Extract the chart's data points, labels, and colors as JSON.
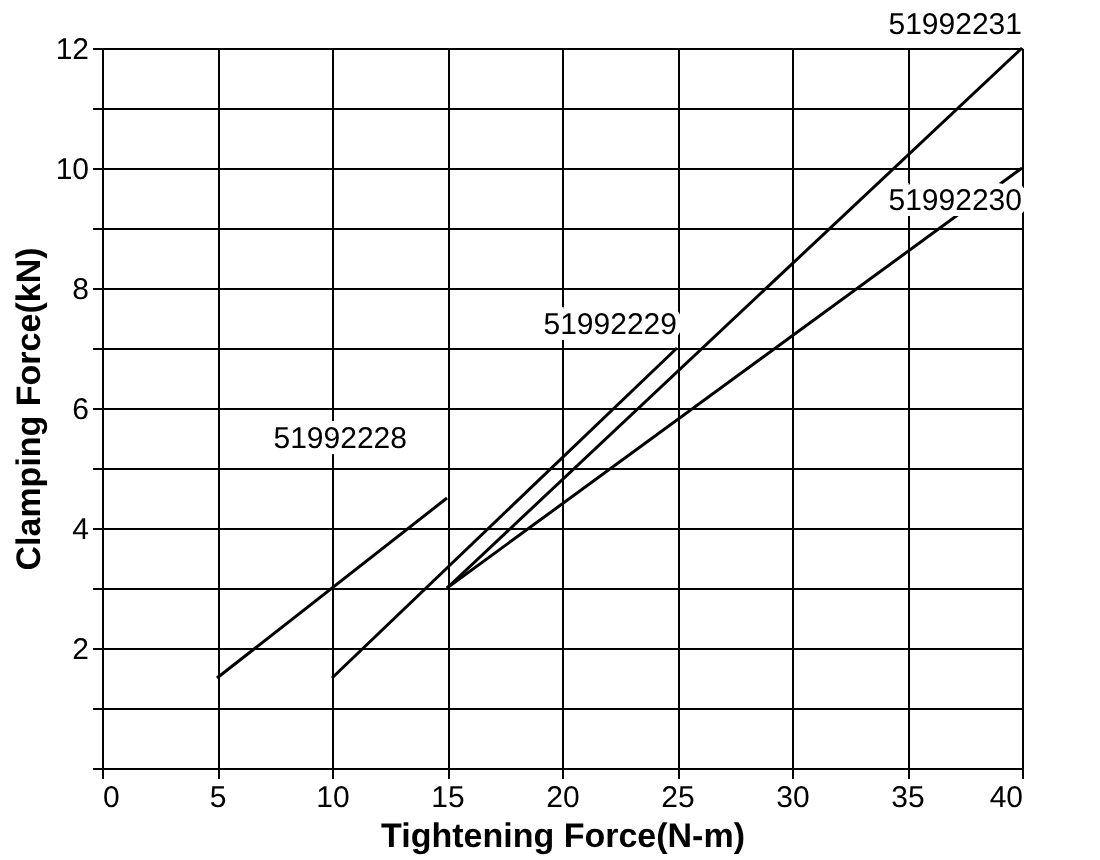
{
  "chart_data": {
    "type": "line",
    "xlabel": "Tightening Force(N-m)",
    "ylabel": "Clamping Force(kN)",
    "xlim": [
      0,
      40
    ],
    "xticks": [
      0,
      5,
      10,
      15,
      20,
      25,
      30,
      35,
      40
    ],
    "ylim": [
      0,
      12
    ],
    "yticks": [
      {
        "value": 0,
        "label": null
      },
      {
        "value": 1,
        "label": null
      },
      2,
      {
        "value": 3,
        "label": null
      },
      4,
      {
        "value": 5,
        "label": null
      },
      6,
      {
        "value": 7,
        "label": null
      },
      8,
      {
        "value": 9,
        "label": null
      },
      10,
      {
        "value": 11,
        "label": null
      },
      12
    ],
    "grid": true,
    "marker": "none",
    "line_style": "solid",
    "series": [
      {
        "name": "51992228",
        "color": "#000000",
        "x": [
          5,
          15
        ],
        "values": [
          1.5,
          4.5
        ]
      },
      {
        "name": "51992229",
        "color": "#000000",
        "x": [
          10,
          25
        ],
        "values": [
          1.5,
          7
        ]
      },
      {
        "name": "51992230",
        "color": "#000000",
        "x": [
          15,
          40
        ],
        "values": [
          3,
          10
        ]
      },
      {
        "name": "51992231",
        "color": "#000000",
        "x": [
          15,
          40
        ],
        "values": [
          3,
          12
        ]
      }
    ]
  }
}
